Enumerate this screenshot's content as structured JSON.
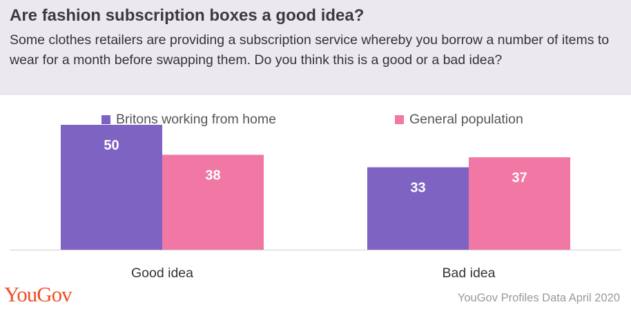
{
  "title": "Are fashion subscription boxes a good idea?",
  "subtitle": "Some clothes retailers are providing a subscription service whereby you borrow a number of items to wear for a month before swapping them. Do you think this is a good or a bad idea?",
  "logo": "YouGov",
  "source": "YouGov Profiles Data April 2020",
  "colors": {
    "series1": "#7e63c3",
    "series2": "#f177a4",
    "header_bg": "#ece8f0"
  },
  "chart_data": {
    "type": "bar",
    "title": "Are fashion subscription boxes a good idea?",
    "categories": [
      "Good idea",
      "Bad idea"
    ],
    "series": [
      {
        "name": "Britons working from home",
        "values": [
          50,
          33
        ],
        "color": "#7e63c3"
      },
      {
        "name": "General population",
        "values": [
          38,
          37
        ],
        "color": "#f177a4"
      }
    ],
    "ylim": [
      0,
      58
    ],
    "grid": false,
    "legend": "top"
  }
}
